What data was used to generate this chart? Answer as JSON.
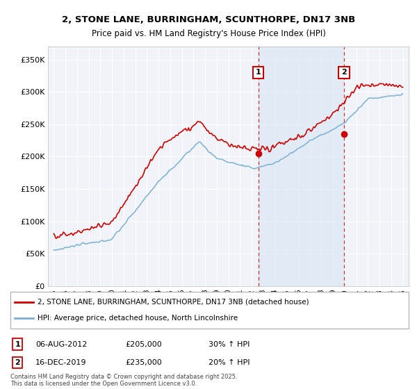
{
  "title1": "2, STONE LANE, BURRINGHAM, SCUNTHORPE, DN17 3NB",
  "title2": "Price paid vs. HM Land Registry's House Price Index (HPI)",
  "xlim": [
    1994.5,
    2025.5
  ],
  "ylim": [
    0,
    370000
  ],
  "yticks": [
    0,
    50000,
    100000,
    150000,
    200000,
    250000,
    300000,
    350000
  ],
  "ytick_labels": [
    "£0",
    "£50K",
    "£100K",
    "£150K",
    "£200K",
    "£250K",
    "£300K",
    "£350K"
  ],
  "background_color": "#ffffff",
  "plot_bg_color": "#f0f4f8",
  "grid_color": "#ffffff",
  "hpi_color": "#7bafd4",
  "price_color": "#cc0000",
  "marker1_x": 2012.58,
  "marker1_y": 205000,
  "marker1_label": "1",
  "marker1_date": "06-AUG-2012",
  "marker1_price": "£205,000",
  "marker1_hpi": "30% ↑ HPI",
  "marker2_x": 2019.95,
  "marker2_y": 235000,
  "marker2_label": "2",
  "marker2_date": "16-DEC-2019",
  "marker2_price": "£235,000",
  "marker2_hpi": "20% ↑ HPI",
  "legend1_text": "2, STONE LANE, BURRINGHAM, SCUNTHORPE, DN17 3NB (detached house)",
  "legend2_text": "HPI: Average price, detached house, North Lincolnshire",
  "footer": "Contains HM Land Registry data © Crown copyright and database right 2025.\nThis data is licensed under the Open Government Licence v3.0.",
  "span_color": "#dce8f5",
  "span_alpha": 0.7,
  "marker_box_color": "#cc0000",
  "marker_box_bg": "#ffffff"
}
